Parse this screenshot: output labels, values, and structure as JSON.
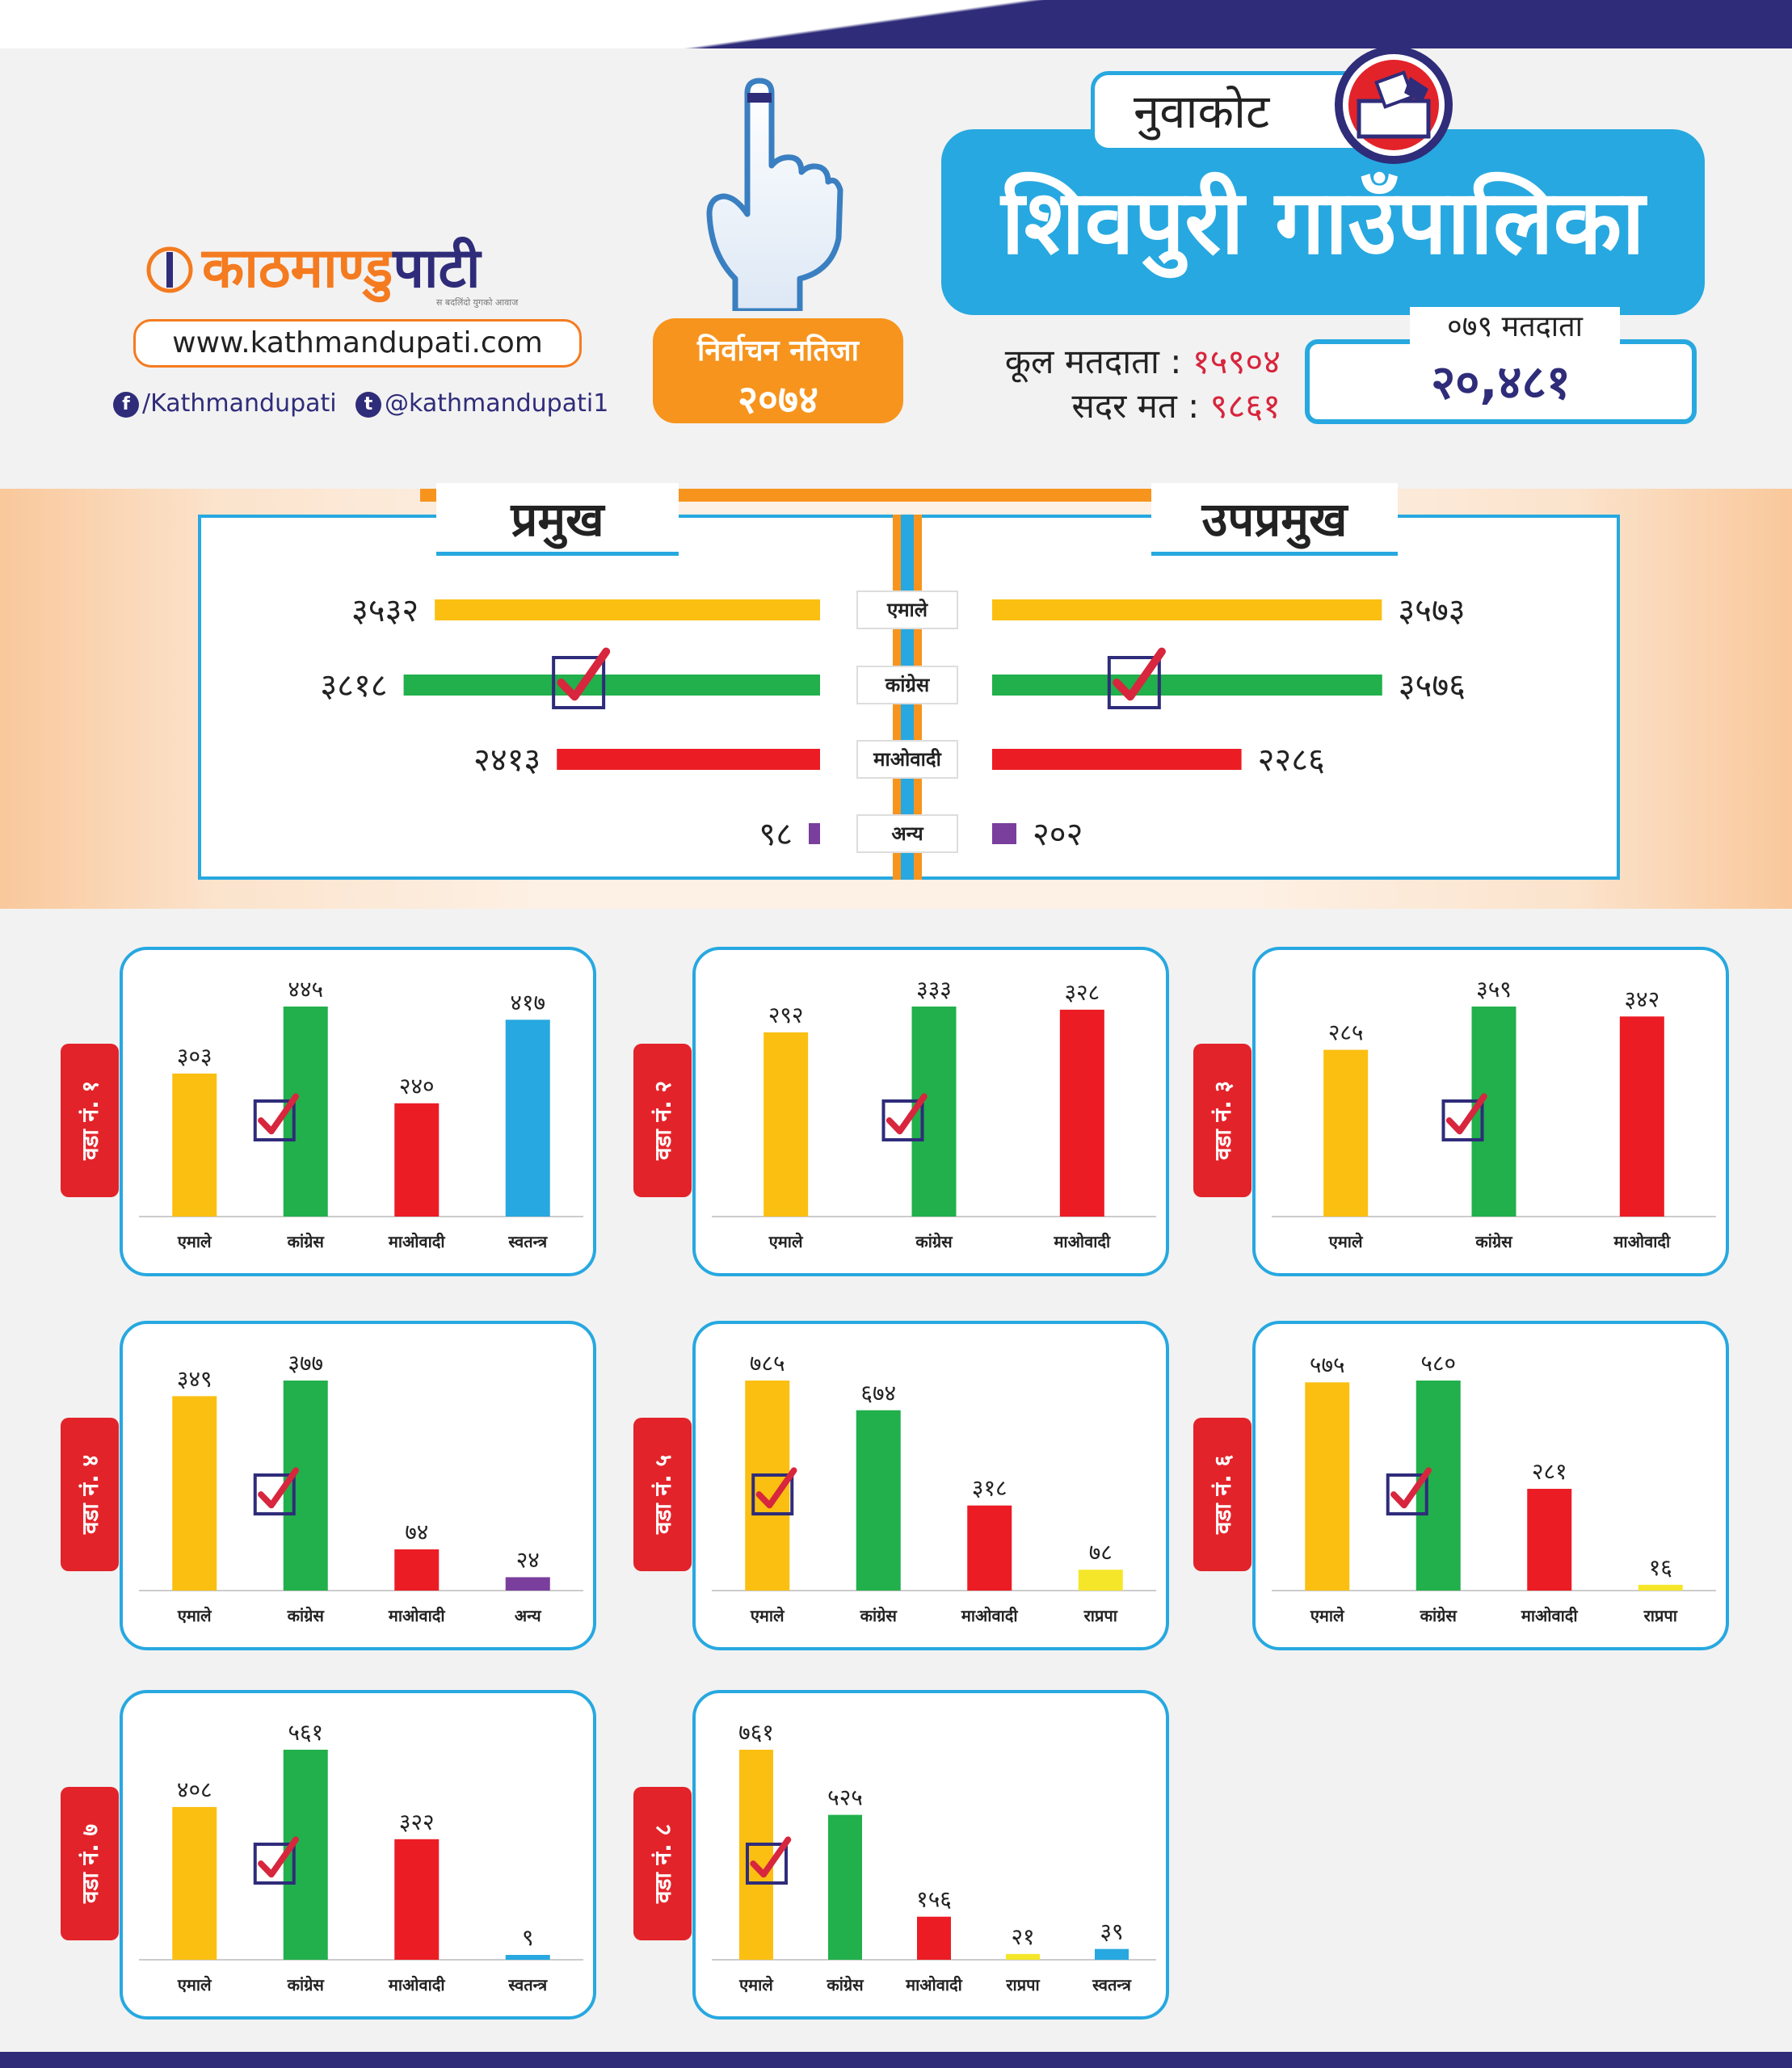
{
  "header": {
    "logo_main": "काठमाण्डु",
    "logo_accent": "पाटी",
    "logo_tagline": "स बदलिंदो युगको आवाज",
    "website": "www.kathmandupati.com",
    "facebook": "/Kathmandupati",
    "twitter": "@kathmandupati1",
    "badge_line1": "निर्वाचन नतिजा",
    "badge_line2": "२०७४",
    "district": "नुवाकोट",
    "municipality": "शिवपुरी गाउँपालिका",
    "total_voters_label": "कूल मतदाता :",
    "total_voters_value": "१५९०४",
    "valid_votes_label": "सदर मत :",
    "valid_votes_value": "९८६१",
    "voters_079_label": "०७९ मतदाता",
    "voters_079_value": "२०,४८१"
  },
  "colors": {
    "emale": "#fbbf12",
    "congress": "#21b04b",
    "maoist": "#ec1c24",
    "other": "#7a3e9d",
    "independent": "#27a8e0",
    "rpp": "#f5e62a",
    "accent": "#27a8e0",
    "orange": "#f7941d",
    "navy": "#2f2c7a"
  },
  "chart_data": [
    {
      "type": "bar",
      "orientation": "horizontal",
      "panel": "प्रमुख",
      "categories": [
        "एमाले",
        "कांग्रेस",
        "माओवादी",
        "अन्य"
      ],
      "values": [
        3532,
        3818,
        2413,
        98
      ],
      "value_labels": [
        "३५३२",
        "३८१८",
        "२४१३",
        "९८"
      ],
      "winner": "कांग्रेस"
    },
    {
      "type": "bar",
      "orientation": "horizontal",
      "panel": "उपप्रमुख",
      "categories": [
        "एमाले",
        "कांग्रेस",
        "माओवादी",
        "अन्य"
      ],
      "values": [
        3573,
        3576,
        2286,
        202
      ],
      "value_labels": [
        "३५७३",
        "३५७६",
        "२२८६",
        "२०२"
      ],
      "winner": "कांग्रेस"
    },
    {
      "type": "bar",
      "ward": "वडा नं. १",
      "categories": [
        "एमाले",
        "कांग्रेस",
        "माओवादी",
        "स्वतन्त्र"
      ],
      "values": [
        303,
        445,
        240,
        417
      ],
      "value_labels": [
        "३०३",
        "४४५",
        "२४०",
        "४१७"
      ],
      "colors": [
        "emale",
        "congress",
        "maoist",
        "independent"
      ],
      "winner": 1
    },
    {
      "type": "bar",
      "ward": "वडा नं. २",
      "categories": [
        "एमाले",
        "कांग्रेस",
        "माओवादी"
      ],
      "values": [
        292,
        333,
        328
      ],
      "value_labels": [
        "२९२",
        "३३३",
        "३२८"
      ],
      "colors": [
        "emale",
        "congress",
        "maoist"
      ],
      "winner": 1
    },
    {
      "type": "bar",
      "ward": "वडा नं. ३",
      "categories": [
        "एमाले",
        "कांग्रेस",
        "माओवादी"
      ],
      "values": [
        285,
        359,
        342
      ],
      "value_labels": [
        "२८५",
        "३५९",
        "३४२"
      ],
      "colors": [
        "emale",
        "congress",
        "maoist"
      ],
      "winner": 1
    },
    {
      "type": "bar",
      "ward": "वडा नं. ४",
      "categories": [
        "एमाले",
        "कांग्रेस",
        "माओवादी",
        "अन्य"
      ],
      "values": [
        349,
        377,
        74,
        24
      ],
      "value_labels": [
        "३४९",
        "३७७",
        "७४",
        "२४"
      ],
      "colors": [
        "emale",
        "congress",
        "maoist",
        "other"
      ],
      "winner": 1
    },
    {
      "type": "bar",
      "ward": "वडा नं. ५",
      "categories": [
        "एमाले",
        "कांग्रेस",
        "माओवादी",
        "राप्रपा"
      ],
      "values": [
        785,
        674,
        318,
        78
      ],
      "value_labels": [
        "७८५",
        "६७४",
        "३१८",
        "७८"
      ],
      "colors": [
        "emale",
        "congress",
        "maoist",
        "rpp"
      ],
      "winner": 0
    },
    {
      "type": "bar",
      "ward": "वडा नं. ६",
      "categories": [
        "एमाले",
        "कांग्रेस",
        "माओवादी",
        "राप्रपा"
      ],
      "values": [
        575,
        580,
        281,
        16
      ],
      "value_labels": [
        "५७५",
        "५८०",
        "२८१",
        "१६"
      ],
      "colors": [
        "emale",
        "congress",
        "maoist",
        "rpp"
      ],
      "winner": 1
    },
    {
      "type": "bar",
      "ward": "वडा नं. ७",
      "categories": [
        "एमाले",
        "कांग्रेस",
        "माओवादी",
        "स्वतन्त्र"
      ],
      "values": [
        408,
        561,
        322,
        9
      ],
      "value_labels": [
        "४०८",
        "५६१",
        "३२२",
        "९"
      ],
      "colors": [
        "emale",
        "congress",
        "maoist",
        "independent"
      ],
      "winner": 1
    },
    {
      "type": "bar",
      "ward": "वडा नं. ८",
      "categories": [
        "एमाले",
        "कांग्रेस",
        "माओवादी",
        "राप्रपा",
        "स्वतन्त्र"
      ],
      "values": [
        761,
        525,
        156,
        21,
        39
      ],
      "value_labels": [
        "७६१",
        "५२५",
        "१५६",
        "२१",
        "३९"
      ],
      "colors": [
        "emale",
        "congress",
        "maoist",
        "rpp",
        "independent"
      ],
      "winner": 0
    }
  ]
}
